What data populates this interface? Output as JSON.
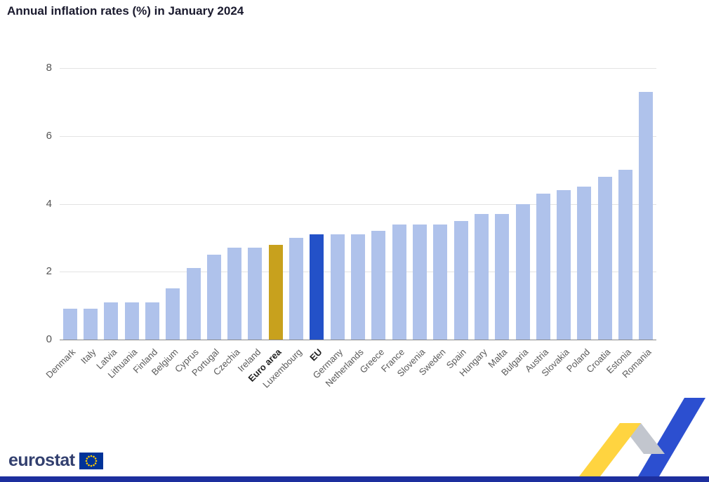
{
  "title": "Annual inflation rates (%) in January 2024",
  "chart_data": {
    "type": "bar",
    "title": "Annual inflation rates (%) in January 2024",
    "xlabel": "",
    "ylabel": "",
    "categories": [
      "Denmark",
      "Italy",
      "Latvia",
      "Lithuania",
      "Finland",
      "Belgium",
      "Cyprus",
      "Portugal",
      "Czechia",
      "Ireland",
      "Euro area",
      "Luxembourg",
      "EU",
      "Germany",
      "Netherlands",
      "Greece",
      "France",
      "Slovenia",
      "Sweden",
      "Spain",
      "Hungary",
      "Malta",
      "Bulgaria",
      "Austria",
      "Slovakia",
      "Poland",
      "Croatia",
      "Estonia",
      "Romania"
    ],
    "values": [
      0.9,
      0.9,
      1.1,
      1.1,
      1.1,
      1.5,
      2.1,
      2.5,
      2.7,
      2.7,
      2.8,
      3.0,
      3.1,
      3.1,
      3.1,
      3.2,
      3.4,
      3.4,
      3.4,
      3.5,
      3.7,
      3.7,
      4.0,
      4.3,
      4.4,
      4.5,
      4.8,
      5.0,
      7.3
    ],
    "ylim": [
      0,
      8
    ],
    "yticks": [
      0,
      2,
      4,
      6,
      8
    ],
    "grid": "horizontal",
    "legend": "none",
    "series_colors": {
      "default": "#afc2eb",
      "Euro area": "#c8a11d",
      "EU": "#2351c8"
    },
    "emphasized_categories": [
      "Euro area",
      "EU"
    ]
  },
  "footer": {
    "logo_text": "eurostat"
  },
  "colors": {
    "bar_default": "#afc2eb",
    "bar_euro_area": "#c8a11d",
    "bar_eu": "#2351c8",
    "footer_strip": "#1d2f9e",
    "eu_flag_blue": "#003399",
    "eu_flag_stars": "#ffcc00"
  }
}
